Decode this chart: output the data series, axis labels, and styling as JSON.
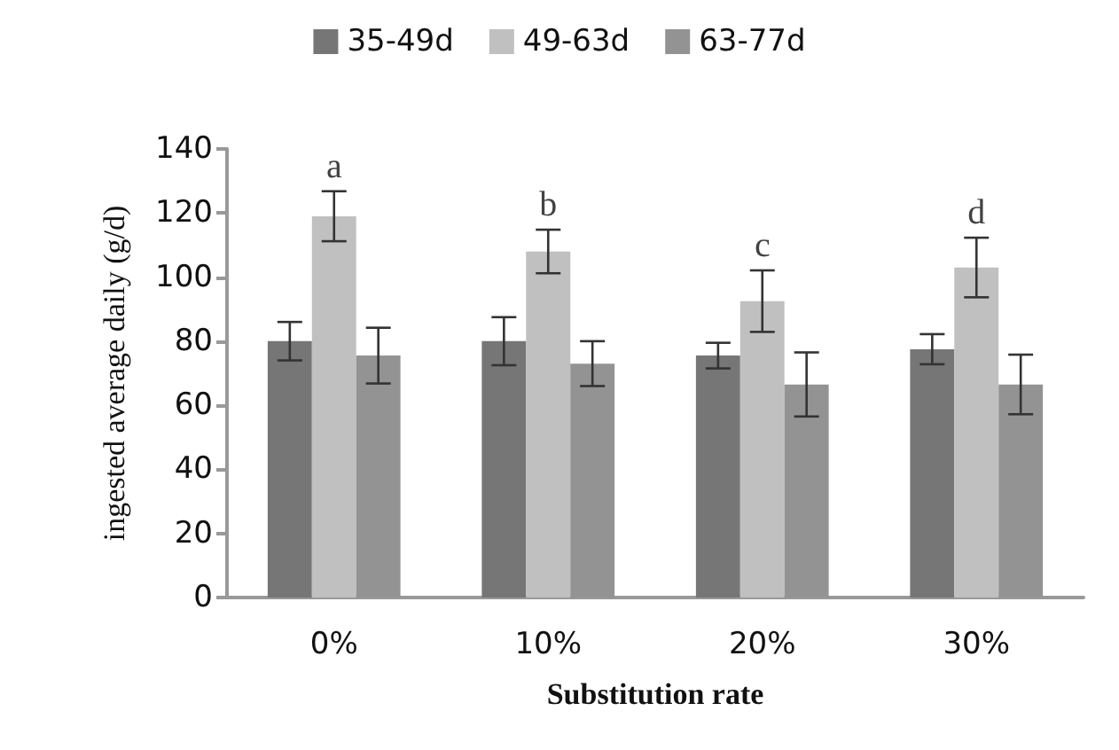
{
  "chart_data": {
    "type": "bar",
    "xlabel": "Substitution rate",
    "ylabel": "ingested average daily (g/d)",
    "categories": [
      "0%",
      "10%",
      "20%",
      "30%"
    ],
    "series": [
      {
        "name": "35-49d",
        "color": "#767676",
        "values": [
          80,
          80,
          75.5,
          77.5
        ],
        "errors": [
          6,
          7.5,
          4,
          4.7
        ]
      },
      {
        "name": "49-63d",
        "color": "#c0c0c0",
        "values": [
          119,
          108,
          92.5,
          103
        ],
        "errors": [
          7.8,
          6.8,
          9.6,
          9.3
        ]
      },
      {
        "name": "63-77d",
        "color": "#939393",
        "values": [
          75.5,
          73,
          66.5,
          66.5
        ],
        "errors": [
          8.7,
          7,
          10,
          9.3
        ]
      }
    ],
    "annotations": [
      "a",
      "b",
      "c",
      "d"
    ],
    "ylim": [
      0,
      140
    ],
    "yticks": [
      0,
      20,
      40,
      60,
      80,
      100,
      120,
      140
    ],
    "grid": false,
    "legend": "top"
  }
}
